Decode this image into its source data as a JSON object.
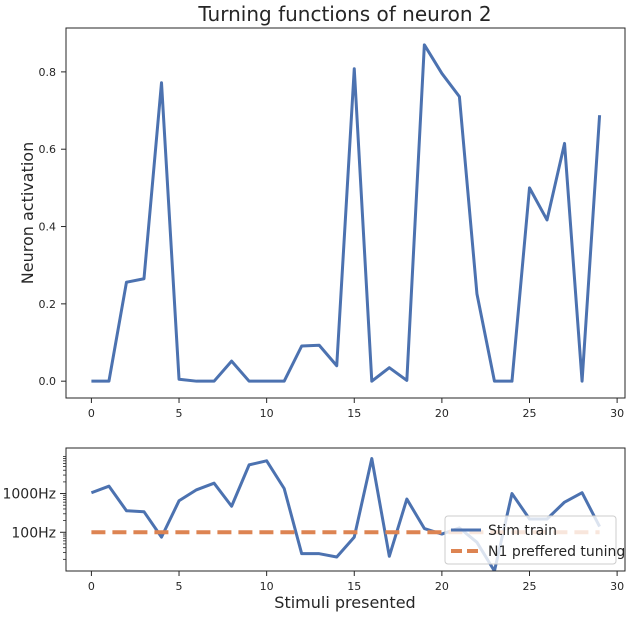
{
  "chart_data": [
    {
      "type": "line",
      "title": "Turning functions of neuron 2",
      "xlabel": "",
      "ylabel": "Neuron activation",
      "xlim": [
        -1.45,
        30.45
      ],
      "ylim": [
        -0.0435,
        0.9135
      ],
      "x_ticks": [
        0,
        5,
        10,
        15,
        20,
        25,
        30
      ],
      "y_ticks": [
        0.0,
        0.2,
        0.4,
        0.6,
        0.8
      ],
      "y_tick_labels": [
        "0.0",
        "0.2",
        "0.4",
        "0.6",
        "0.8"
      ],
      "grid": false,
      "series": [
        {
          "color": "#4c72b0",
          "x": [
            0,
            1,
            2,
            3,
            4,
            5,
            6,
            7,
            8,
            9,
            10,
            11,
            12,
            13,
            14,
            15,
            16,
            17,
            18,
            19,
            20,
            21,
            22,
            23,
            24,
            25,
            26,
            27,
            28,
            29
          ],
          "values": [
            0.0,
            0.0,
            0.256,
            0.265,
            0.772,
            0.005,
            0.0,
            0.0,
            0.052,
            0.0,
            0.0,
            0.0,
            0.091,
            0.093,
            0.04,
            0.808,
            0.0,
            0.035,
            0.002,
            0.87,
            0.796,
            0.736,
            0.226,
            0.0,
            0.0,
            0.5,
            0.417,
            0.615,
            0.0,
            0.688
          ]
        }
      ]
    },
    {
      "type": "line",
      "title": "",
      "xlabel": "Stimuli presented",
      "ylabel": "",
      "xlim": [
        -1.45,
        30.45
      ],
      "ylim": [
        10,
        15000
      ],
      "yscale": "log",
      "x_ticks": [
        0,
        5,
        10,
        15,
        20,
        25,
        30
      ],
      "y_ticks": [
        100,
        1000
      ],
      "y_tick_labels": [
        "100Hz",
        "1000Hz"
      ],
      "grid": false,
      "legend_position": "bottom-right",
      "series": [
        {
          "name": "Stim train",
          "color": "#4c72b0",
          "style": "solid",
          "x": [
            0,
            1,
            2,
            3,
            4,
            5,
            6,
            7,
            8,
            9,
            10,
            11,
            12,
            13,
            14,
            15,
            16,
            17,
            18,
            19,
            20,
            21,
            22,
            23,
            24,
            25,
            26,
            27,
            28,
            29
          ],
          "values": [
            1050,
            1550,
            360,
            340,
            75,
            650,
            1250,
            1850,
            470,
            5500,
            7000,
            1350,
            28,
            28,
            23,
            75,
            8000,
            24,
            720,
            125,
            90,
            130,
            55,
            10,
            1000,
            220,
            220,
            600,
            1050,
            140
          ]
        },
        {
          "name": "N1 preffered tuning",
          "color": "#dd8452",
          "style": "dashed",
          "x": [
            0,
            29
          ],
          "values": [
            100,
            100
          ]
        }
      ]
    }
  ]
}
